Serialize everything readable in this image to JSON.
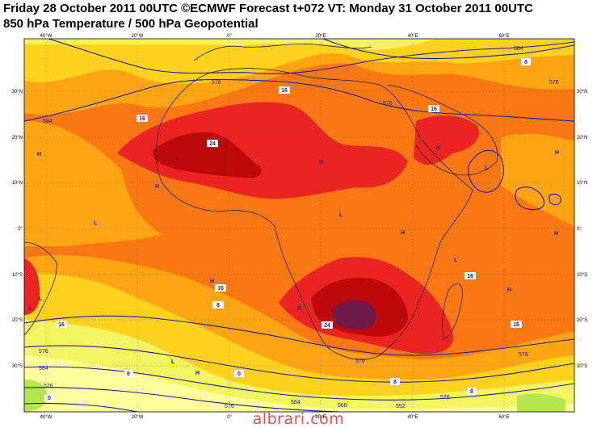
{
  "header": {
    "line1": "Friday 28 October 2011 00UTC ©ECMWF Forecast t+072 VT: Monday 31 October 2011 00UTC",
    "line2": "850 hPa Temperature / 500 hPa Geopotential"
  },
  "axes": {
    "lon_ticks": [
      "40°W",
      "20°W",
      "0°",
      "20°E",
      "40°E",
      "60°E"
    ],
    "lat_ticks_left": [
      "30°N",
      "20°N",
      "10°N",
      "0°",
      "10°S",
      "20°S",
      "30°S"
    ],
    "lat_ticks_right": [
      "30°N",
      "20°N",
      "10°N",
      "0°",
      "10°S",
      "20°S",
      "30°S"
    ]
  },
  "colors": {
    "temp_0_8": "#ffff9e",
    "temp_8_12": "#f4f460",
    "temp_12_16": "#ffd21e",
    "temp_16_20": "#ffa514",
    "temp_20_24": "#fa7814",
    "temp_24_28": "#eb2323",
    "temp_28_32": "#be0a0a",
    "temp_32_plus": "#6e1a4a",
    "cold_green": "#b4e650",
    "contour": "#1a1aa0",
    "coast": "#222222"
  },
  "temperature_labels": [
    "16",
    "16",
    "24",
    "16",
    "16",
    "8",
    "16",
    "24",
    "16",
    "16",
    "8",
    "0",
    "8",
    "8",
    "0",
    "8"
  ],
  "geopotential_labels": [
    "584",
    "576",
    "576",
    "584",
    "576",
    "576",
    "576",
    "576",
    "584",
    "576",
    "576",
    "560",
    "584",
    "552",
    "576"
  ],
  "pressure_marks": [
    "H",
    "H",
    "H",
    "H",
    "H",
    "H",
    "H",
    "L",
    "L",
    "L",
    "L",
    "L",
    "L",
    "H",
    "H",
    "H",
    "L",
    "L",
    "H"
  ],
  "watermark": "albrari.com"
}
